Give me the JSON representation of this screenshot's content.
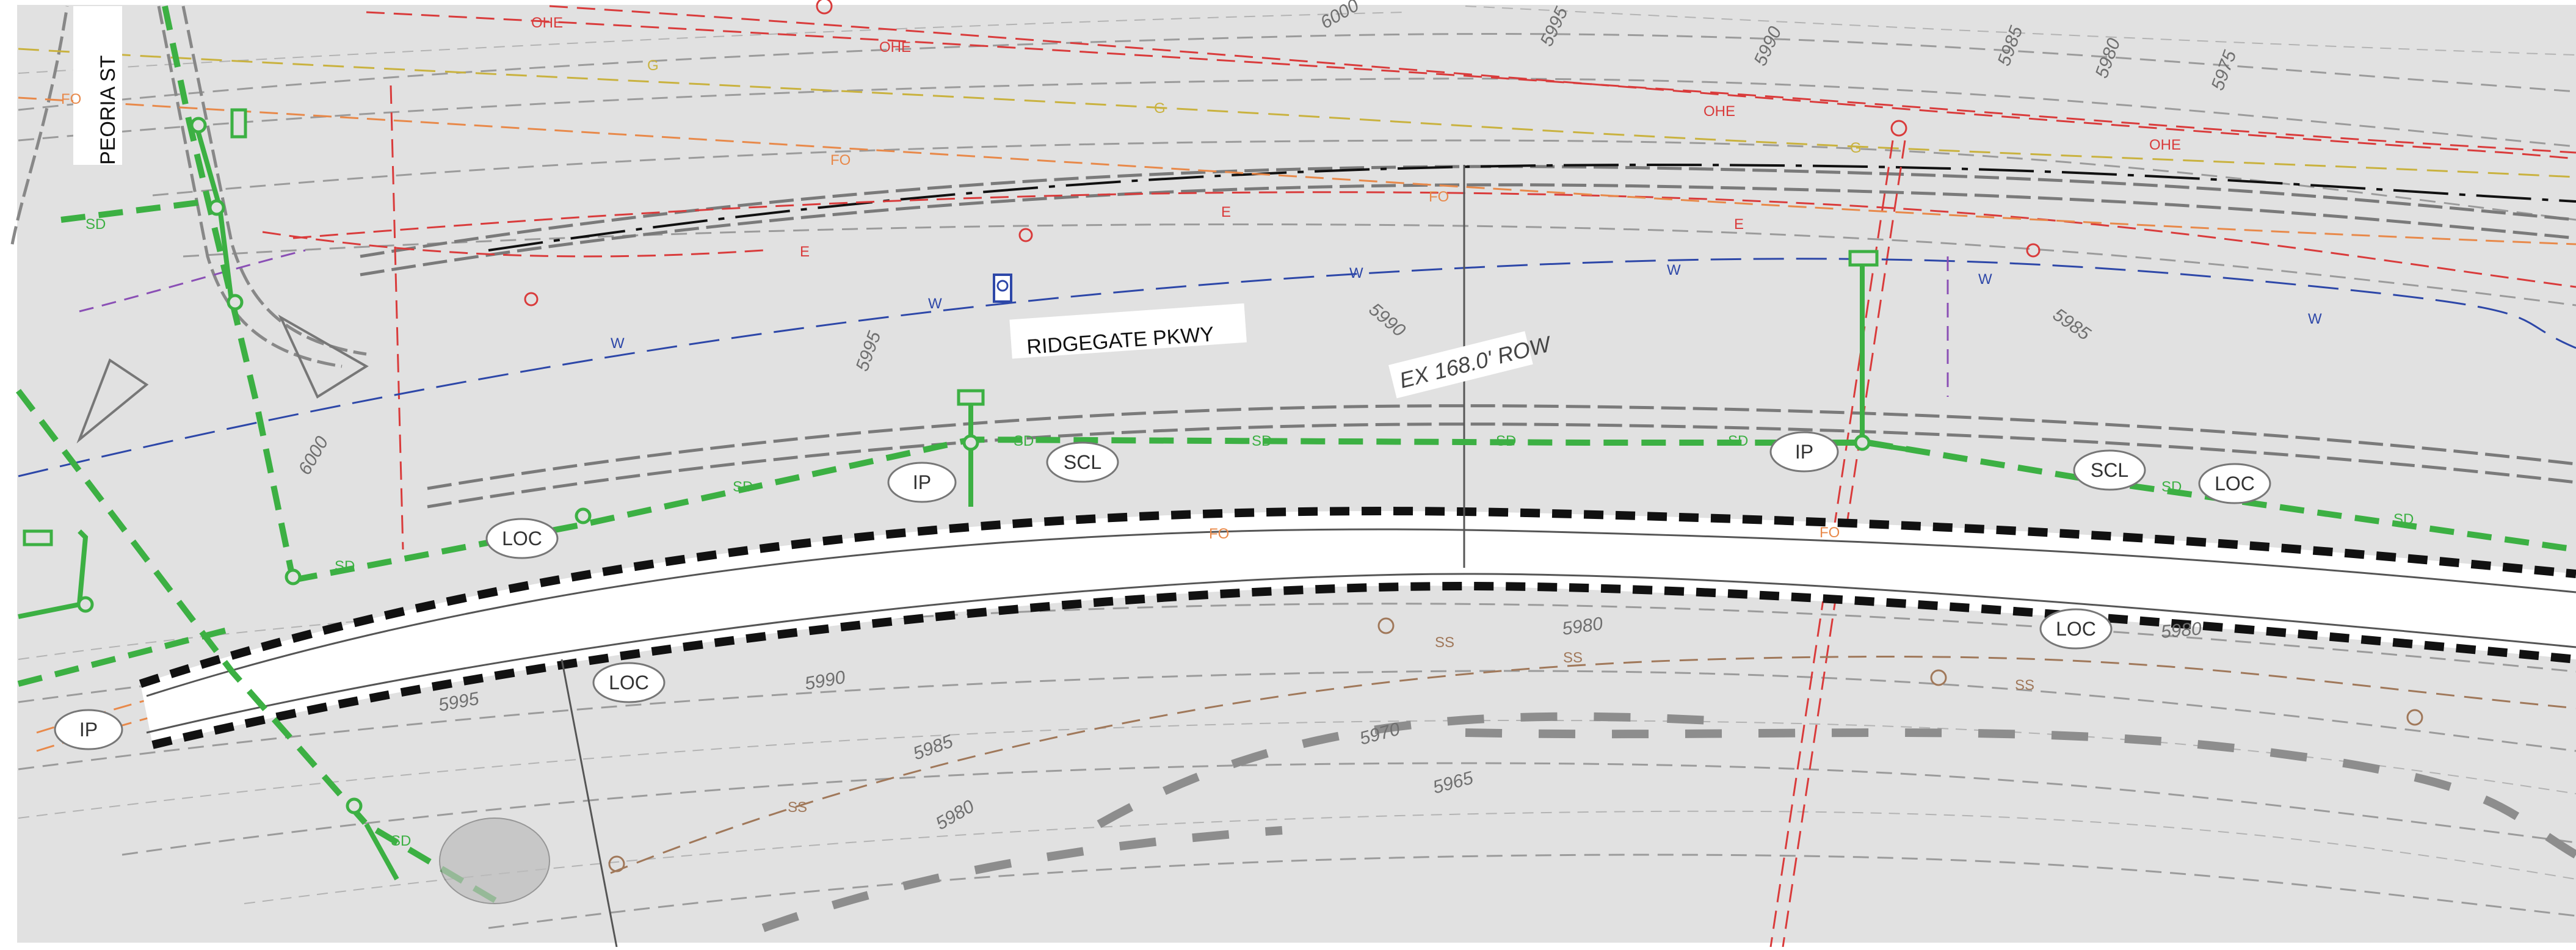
{
  "labels": {
    "street_peoria": "PEORIA ST",
    "road_name": "RIDGEGATE PKWY",
    "row_note": "EX 168.0' ROW"
  },
  "tags": {
    "ip": "IP",
    "loc": "LOC",
    "scl": "SCL"
  },
  "utility_codes": {
    "storm": "SD",
    "water": "W",
    "electric": "E",
    "overhead": "OHE",
    "fiber": "FO",
    "gas": "G",
    "sanitary": "SS"
  },
  "contours": {
    "c6000": "6000",
    "c5995": "5995",
    "c5990": "5990",
    "c5985": "5985",
    "c5980": "5980",
    "c5975": "5975",
    "c5970": "5970",
    "c5965": "5965"
  },
  "colors": {
    "background": "#e1e1e1",
    "storm": "#3cb043",
    "water": "#2d47a8",
    "electric": "#d93b3b",
    "fiber": "#e8894a",
    "gas": "#c9b23f",
    "sanitary": "#a0785a",
    "purple": "#8a4fb5"
  }
}
